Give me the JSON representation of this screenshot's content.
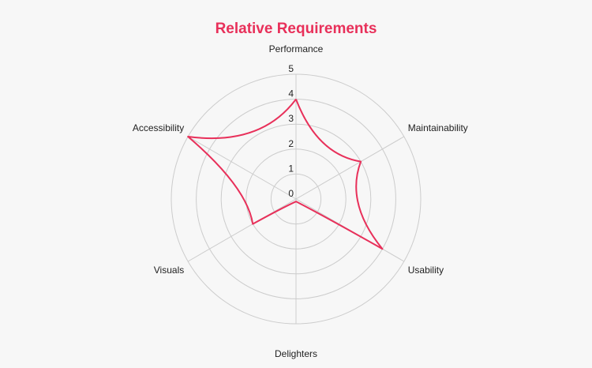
{
  "chart_data": {
    "type": "radar",
    "title": "Relative Requirements",
    "title_color": "#e8305a",
    "axes": [
      "Performance",
      "Maintainability",
      "Usability",
      "Delighters",
      "Visuals",
      "Accessibility"
    ],
    "rlim": [
      0,
      5
    ],
    "ticks": [
      "0",
      "1",
      "2",
      "3",
      "4",
      "5"
    ],
    "grid": true,
    "series": [
      {
        "values": [
          4,
          3,
          4,
          0.1,
          2,
          5
        ],
        "color": "#e8305a"
      }
    ]
  }
}
